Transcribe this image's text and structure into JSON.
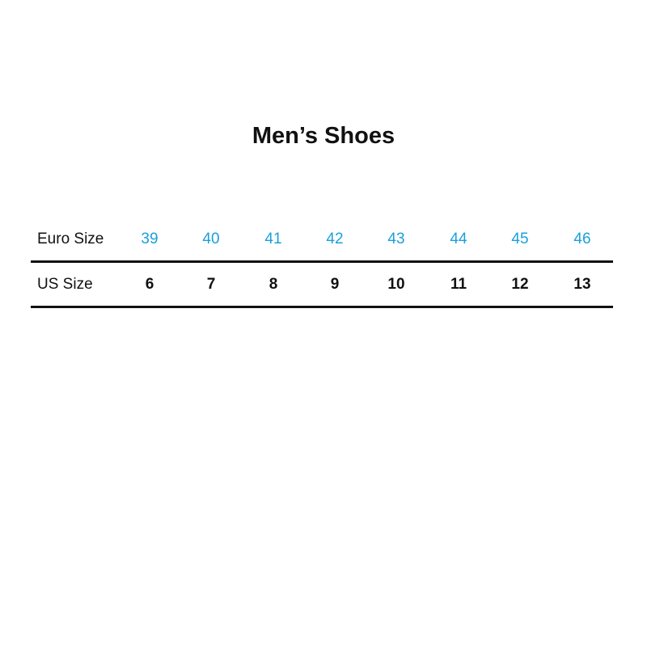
{
  "title": "Men’s Shoes",
  "colors": {
    "euro_values": "#1aa0dc",
    "text": "#111111"
  },
  "table": {
    "rows": [
      {
        "label": "Euro Size",
        "values": [
          "39",
          "40",
          "41",
          "42",
          "43",
          "44",
          "45",
          "46"
        ]
      },
      {
        "label": "US Size",
        "values": [
          "6",
          "7",
          "8",
          "9",
          "10",
          "11",
          "12",
          "13"
        ]
      }
    ]
  }
}
